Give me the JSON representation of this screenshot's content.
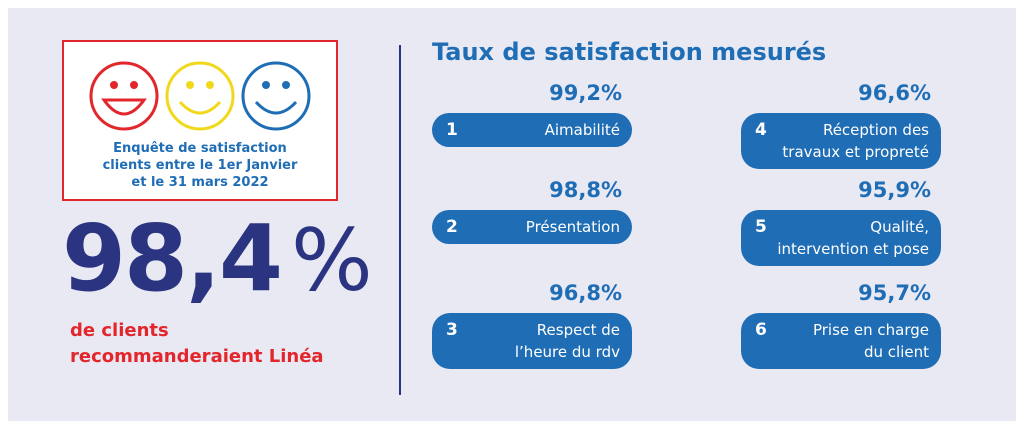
{
  "survey": {
    "lines": [
      "Enquête de satisfaction",
      "clients entre le 1er Janvier",
      "et le 31 mars 2022"
    ]
  },
  "headline": {
    "value": "98,4",
    "unit": "%",
    "caption": [
      "de clients",
      "recommanderaient Linéa"
    ]
  },
  "section": {
    "title": "Taux de satisfaction mesurés",
    "items": [
      {
        "number": "1",
        "score": "99,2%",
        "label": [
          "Aimabilité"
        ]
      },
      {
        "number": "2",
        "score": "98,8%",
        "label": [
          "Présentation"
        ]
      },
      {
        "number": "3",
        "score": "96,8%",
        "label": [
          "Respect de",
          "l’heure du rdv"
        ]
      },
      {
        "number": "4",
        "score": "96,6%",
        "label": [
          "Réception des",
          "travaux et propreté"
        ]
      },
      {
        "number": "5",
        "score": "95,9%",
        "label": [
          "Qualité,",
          "intervention et pose"
        ]
      },
      {
        "number": "6",
        "score": "95,7%",
        "label": [
          "Prise en charge",
          "du client"
        ]
      }
    ]
  }
}
